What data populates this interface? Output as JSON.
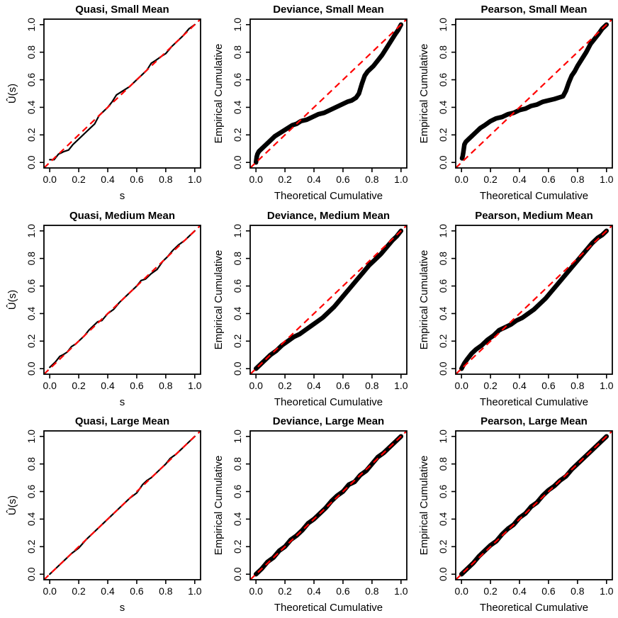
{
  "style": {
    "background": "#ffffff",
    "curve_color": "#000000",
    "reference_color": "#ff0000",
    "box_color": "#000000",
    "reference_dash": "9 6",
    "reference_width": 2.2,
    "thin_width": 2.2,
    "thick_width": 6.5
  },
  "axes": {
    "ticks": [
      0,
      0.2,
      0.4,
      0.6,
      0.8,
      1
    ],
    "tick_labels": [
      "0.0",
      "0.2",
      "0.4",
      "0.6",
      "0.8",
      "1.0"
    ],
    "xlim": [
      0,
      1
    ],
    "ylim": [
      0,
      1
    ],
    "padding_frac": 0.04,
    "grid": false,
    "legend": "none"
  },
  "chart_data": [
    {
      "type": "line",
      "title": "Quasi, Small Mean",
      "xlabel": "s",
      "ylabel": "Û(s)",
      "xlim": [
        0,
        1
      ],
      "ylim": [
        0,
        1
      ],
      "line_weight": "thin",
      "reference_line": {
        "type": "diagonal",
        "style": "dashed",
        "color": "#ff0000",
        "from": [
          0,
          0
        ],
        "to": [
          1,
          1
        ]
      },
      "series": [
        {
          "name": "empirical-vs-theoretical",
          "x": [
            0,
            0.03,
            0.06,
            0.08,
            0.1,
            0.13,
            0.16,
            0.2,
            0.24,
            0.28,
            0.31,
            0.34,
            0.37,
            0.4,
            0.43,
            0.46,
            0.49,
            0.52,
            0.55,
            0.58,
            0.61,
            0.64,
            0.67,
            0.7,
            0.73,
            0.77,
            0.8,
            0.84,
            0.88,
            0.92,
            0.96,
            1.0
          ],
          "y": [
            0.02,
            0.02,
            0.06,
            0.07,
            0.08,
            0.09,
            0.13,
            0.17,
            0.21,
            0.25,
            0.28,
            0.34,
            0.37,
            0.4,
            0.44,
            0.49,
            0.51,
            0.53,
            0.55,
            0.58,
            0.61,
            0.64,
            0.67,
            0.72,
            0.74,
            0.77,
            0.79,
            0.84,
            0.88,
            0.92,
            0.97,
            1.0
          ]
        }
      ]
    },
    {
      "type": "line",
      "title": "Deviance, Small Mean",
      "xlabel": "Theoretical Cumulative",
      "ylabel": "Empirical Cumulative",
      "xlim": [
        0,
        1
      ],
      "ylim": [
        0,
        1
      ],
      "line_weight": "thick",
      "reference_line": {
        "type": "diagonal",
        "style": "dashed",
        "color": "#ff0000",
        "from": [
          0,
          0
        ],
        "to": [
          1,
          1
        ]
      },
      "series": [
        {
          "name": "empirical-vs-theoretical",
          "x": [
            0,
            0.005,
            0.01,
            0.02,
            0.04,
            0.07,
            0.1,
            0.13,
            0.16,
            0.19,
            0.22,
            0.25,
            0.28,
            0.31,
            0.35,
            0.39,
            0.43,
            0.47,
            0.51,
            0.55,
            0.59,
            0.63,
            0.66,
            0.69,
            0.71,
            0.73,
            0.75,
            0.77,
            0.79,
            0.81,
            0.84,
            0.87,
            0.9,
            0.93,
            0.96,
            0.98,
            1.0
          ],
          "y": [
            0.0,
            0.04,
            0.06,
            0.08,
            0.1,
            0.13,
            0.16,
            0.19,
            0.21,
            0.23,
            0.25,
            0.27,
            0.28,
            0.3,
            0.31,
            0.33,
            0.35,
            0.36,
            0.38,
            0.4,
            0.42,
            0.44,
            0.45,
            0.47,
            0.5,
            0.57,
            0.63,
            0.66,
            0.68,
            0.7,
            0.74,
            0.78,
            0.83,
            0.88,
            0.93,
            0.96,
            1.0
          ]
        }
      ]
    },
    {
      "type": "line",
      "title": "Pearson, Small Mean",
      "xlabel": "Theoretical Cumulative",
      "ylabel": "Empirical Cumulative",
      "xlim": [
        0,
        1
      ],
      "ylim": [
        0,
        1
      ],
      "line_weight": "thick",
      "reference_line": {
        "type": "diagonal",
        "style": "dashed",
        "color": "#ff0000",
        "from": [
          0,
          0
        ],
        "to": [
          1,
          1
        ]
      },
      "dots": [
        [
          0.005,
          0.028
        ],
        [
          0.009,
          0.042
        ]
      ],
      "series": [
        {
          "name": "empirical-vs-theoretical",
          "x": [
            0.004,
            0.008,
            0.012,
            0.016,
            0.02,
            0.03,
            0.05,
            0.07,
            0.1,
            0.13,
            0.16,
            0.2,
            0.24,
            0.28,
            0.32,
            0.36,
            0.4,
            0.44,
            0.48,
            0.52,
            0.56,
            0.6,
            0.64,
            0.67,
            0.7,
            0.72,
            0.74,
            0.76,
            0.78,
            0.8,
            0.83,
            0.86,
            0.89,
            0.92,
            0.95,
            0.97,
            1.0
          ],
          "y": [
            0.03,
            0.045,
            0.07,
            0.1,
            0.13,
            0.15,
            0.17,
            0.19,
            0.22,
            0.25,
            0.27,
            0.3,
            0.32,
            0.33,
            0.35,
            0.36,
            0.38,
            0.39,
            0.41,
            0.42,
            0.44,
            0.45,
            0.46,
            0.47,
            0.48,
            0.52,
            0.58,
            0.63,
            0.66,
            0.7,
            0.75,
            0.8,
            0.86,
            0.9,
            0.94,
            0.97,
            1.0
          ]
        }
      ]
    },
    {
      "type": "line",
      "title": "Quasi, Medium Mean",
      "xlabel": "s",
      "ylabel": "Û(s)",
      "xlim": [
        0,
        1
      ],
      "ylim": [
        0,
        1
      ],
      "line_weight": "thin",
      "reference_line": {
        "type": "diagonal",
        "style": "dashed",
        "color": "#ff0000",
        "from": [
          0,
          0
        ],
        "to": [
          1,
          1
        ]
      },
      "series": [
        {
          "name": "empirical-vs-theoretical",
          "x": [
            0,
            0.04,
            0.07,
            0.09,
            0.12,
            0.15,
            0.18,
            0.21,
            0.24,
            0.27,
            0.3,
            0.33,
            0.36,
            0.4,
            0.44,
            0.48,
            0.52,
            0.56,
            0.6,
            0.63,
            0.66,
            0.7,
            0.74,
            0.78,
            0.81,
            0.85,
            0.89,
            0.93,
            0.97,
            1.0
          ],
          "y": [
            0.01,
            0.05,
            0.09,
            0.1,
            0.12,
            0.16,
            0.18,
            0.21,
            0.24,
            0.28,
            0.31,
            0.34,
            0.35,
            0.4,
            0.43,
            0.48,
            0.52,
            0.56,
            0.6,
            0.64,
            0.65,
            0.69,
            0.72,
            0.78,
            0.81,
            0.86,
            0.9,
            0.93,
            0.97,
            1.0
          ]
        }
      ]
    },
    {
      "type": "line",
      "title": "Deviance, Medium Mean",
      "xlabel": "Theoretical Cumulative",
      "ylabel": "Empirical Cumulative",
      "xlim": [
        0,
        1
      ],
      "ylim": [
        0,
        1
      ],
      "line_weight": "thick",
      "reference_line": {
        "type": "diagonal",
        "style": "dashed",
        "color": "#ff0000",
        "from": [
          0,
          0
        ],
        "to": [
          1,
          1
        ]
      },
      "series": [
        {
          "name": "empirical-vs-theoretical",
          "x": [
            0,
            0.03,
            0.06,
            0.1,
            0.14,
            0.18,
            0.22,
            0.26,
            0.3,
            0.34,
            0.38,
            0.42,
            0.46,
            0.5,
            0.54,
            0.58,
            0.62,
            0.66,
            0.7,
            0.74,
            0.78,
            0.82,
            0.86,
            0.9,
            0.94,
            0.97,
            1.0
          ],
          "y": [
            0.0,
            0.03,
            0.06,
            0.1,
            0.13,
            0.17,
            0.2,
            0.23,
            0.25,
            0.28,
            0.31,
            0.34,
            0.37,
            0.41,
            0.45,
            0.5,
            0.55,
            0.6,
            0.65,
            0.7,
            0.75,
            0.79,
            0.83,
            0.88,
            0.93,
            0.96,
            1.0
          ]
        }
      ]
    },
    {
      "type": "line",
      "title": "Pearson, Medium Mean",
      "xlabel": "Theoretical Cumulative",
      "ylabel": "Empirical Cumulative",
      "xlim": [
        0,
        1
      ],
      "ylim": [
        0,
        1
      ],
      "line_weight": "thick",
      "reference_line": {
        "type": "diagonal",
        "style": "dashed",
        "color": "#ff0000",
        "from": [
          0,
          0
        ],
        "to": [
          1,
          1
        ]
      },
      "series": [
        {
          "name": "empirical-vs-theoretical",
          "x": [
            0,
            0.02,
            0.04,
            0.07,
            0.1,
            0.14,
            0.18,
            0.22,
            0.26,
            0.3,
            0.34,
            0.38,
            0.42,
            0.46,
            0.5,
            0.54,
            0.58,
            0.62,
            0.66,
            0.7,
            0.74,
            0.78,
            0.82,
            0.86,
            0.9,
            0.94,
            0.97,
            1.0
          ],
          "y": [
            0.0,
            0.04,
            0.07,
            0.11,
            0.14,
            0.17,
            0.21,
            0.24,
            0.28,
            0.3,
            0.32,
            0.35,
            0.37,
            0.4,
            0.43,
            0.47,
            0.51,
            0.56,
            0.61,
            0.66,
            0.71,
            0.76,
            0.81,
            0.86,
            0.91,
            0.95,
            0.97,
            1.0
          ]
        }
      ]
    },
    {
      "type": "line",
      "title": "Quasi, Large Mean",
      "xlabel": "s",
      "ylabel": "Û(s)",
      "xlim": [
        0,
        1
      ],
      "ylim": [
        0,
        1
      ],
      "line_weight": "thin",
      "reference_line": {
        "type": "diagonal",
        "style": "dashed",
        "color": "#ff0000",
        "from": [
          0,
          0
        ],
        "to": [
          1,
          1
        ]
      },
      "series": [
        {
          "name": "empirical-vs-theoretical",
          "x": [
            0,
            0.05,
            0.1,
            0.15,
            0.2,
            0.25,
            0.3,
            0.35,
            0.4,
            0.45,
            0.5,
            0.55,
            0.6,
            0.64,
            0.67,
            0.7,
            0.75,
            0.8,
            0.83,
            0.87,
            0.91,
            0.95,
            1.0
          ],
          "y": [
            0.0,
            0.05,
            0.1,
            0.15,
            0.19,
            0.25,
            0.3,
            0.35,
            0.4,
            0.45,
            0.5,
            0.55,
            0.59,
            0.65,
            0.68,
            0.7,
            0.75,
            0.8,
            0.84,
            0.87,
            0.91,
            0.95,
            1.0
          ]
        }
      ]
    },
    {
      "type": "line",
      "title": "Deviance, Large Mean",
      "xlabel": "Theoretical Cumulative",
      "ylabel": "Empirical Cumulative",
      "xlim": [
        0,
        1
      ],
      "ylim": [
        0,
        1
      ],
      "line_weight": "thick",
      "reference_line": {
        "type": "diagonal",
        "style": "dashed",
        "color": "#ff0000",
        "from": [
          0,
          0
        ],
        "to": [
          1,
          1
        ]
      },
      "series": [
        {
          "name": "empirical-vs-theoretical",
          "x": [
            0,
            0.04,
            0.08,
            0.12,
            0.16,
            0.2,
            0.24,
            0.28,
            0.32,
            0.36,
            0.4,
            0.44,
            0.48,
            0.52,
            0.56,
            0.6,
            0.64,
            0.68,
            0.72,
            0.76,
            0.8,
            0.84,
            0.88,
            0.92,
            0.96,
            1.0
          ],
          "y": [
            0.0,
            0.04,
            0.09,
            0.12,
            0.17,
            0.2,
            0.25,
            0.28,
            0.32,
            0.37,
            0.4,
            0.44,
            0.48,
            0.53,
            0.57,
            0.6,
            0.65,
            0.67,
            0.72,
            0.75,
            0.8,
            0.85,
            0.88,
            0.92,
            0.96,
            1.0
          ]
        }
      ]
    },
    {
      "type": "line",
      "title": "Pearson, Large Mean",
      "xlabel": "Theoretical Cumulative",
      "ylabel": "Empirical Cumulative",
      "xlim": [
        0,
        1
      ],
      "ylim": [
        0,
        1
      ],
      "line_weight": "thick",
      "reference_line": {
        "type": "diagonal",
        "style": "dashed",
        "color": "#ff0000",
        "from": [
          0,
          0
        ],
        "to": [
          1,
          1
        ]
      },
      "series": [
        {
          "name": "empirical-vs-theoretical",
          "x": [
            0,
            0.04,
            0.08,
            0.12,
            0.16,
            0.2,
            0.24,
            0.28,
            0.32,
            0.36,
            0.4,
            0.44,
            0.48,
            0.52,
            0.56,
            0.6,
            0.64,
            0.68,
            0.72,
            0.76,
            0.8,
            0.84,
            0.88,
            0.92,
            0.96,
            1.0
          ],
          "y": [
            0.0,
            0.04,
            0.08,
            0.13,
            0.17,
            0.21,
            0.24,
            0.29,
            0.33,
            0.36,
            0.41,
            0.44,
            0.49,
            0.52,
            0.57,
            0.61,
            0.64,
            0.68,
            0.71,
            0.76,
            0.8,
            0.84,
            0.88,
            0.92,
            0.96,
            1.0
          ]
        }
      ]
    }
  ]
}
